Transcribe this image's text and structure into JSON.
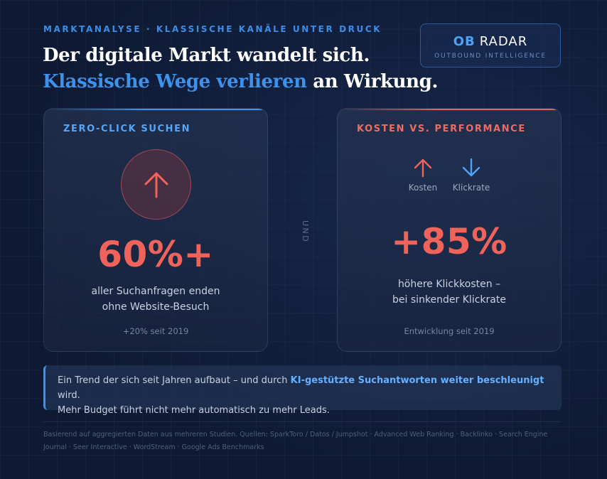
{
  "header": {
    "kicker": "MARKTANALYSE · KLASSISCHE KANÄLE UNTER DRUCK",
    "headline_line1": "Der digitale Markt wandelt sich.",
    "headline_accent": "Klassische Wege verlieren",
    "headline_rest": " an Wirkung."
  },
  "brand": {
    "prefix": "OB",
    "name": "RADAR",
    "subtitle": "OUTBOUND INTELLIGENCE"
  },
  "zero_click": {
    "title": "ZERO-CLICK SUCHEN",
    "icon": "arrow-up-icon",
    "value": "60%+",
    "desc_line1": "aller Suchanfragen enden",
    "desc_line2": "ohne Website-Besuch",
    "footnote": "+20% seit 2019"
  },
  "separator": "UND",
  "cost_performance": {
    "title": "KOSTEN VS. PERFORMANCE",
    "cost_label": "Kosten",
    "cost_icon": "arrow-up-icon",
    "ctr_label": "Klickrate",
    "ctr_icon": "arrow-down-icon",
    "value": "+85%",
    "desc_line1": "höhere Klickkosten –",
    "desc_line2": "bei sinkender Klickrate",
    "footnote": "Entwicklung seit 2019"
  },
  "callout": {
    "text_before": "Ein Trend der sich seit Jahren aufbaut – und durch ",
    "highlight": "KI-gestützte Suchantworten weiter beschleunigt",
    "text_after": " wird.",
    "line2": "Mehr Budget führt nicht mehr automatisch zu mehr Leads."
  },
  "sources": "Basierend auf aggregierten Daten aus mehreren Studien. Quellen: SparkToro / Datos / Jumpshot · Advanced Web Ranking · Backlinko · Search Engine Journal · Seer Interactive · WordStream · Google Ads Benchmarks",
  "colors": {
    "background": "#0e1a33",
    "accent_blue": "#3d92ec",
    "accent_red": "#f0635a"
  }
}
